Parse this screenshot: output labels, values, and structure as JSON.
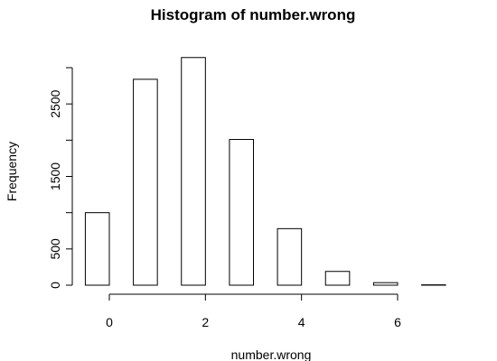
{
  "chart_data": {
    "type": "bar",
    "title": "Histogram of number.wrong",
    "xlabel": "number.wrong",
    "ylabel": "Frequency",
    "bins": [
      {
        "x0": -0.5,
        "x1": 0.0,
        "value": 1000
      },
      {
        "x0": 0.5,
        "x1": 1.0,
        "value": 2840
      },
      {
        "x0": 1.5,
        "x1": 2.0,
        "value": 3140
      },
      {
        "x0": 2.5,
        "x1": 3.0,
        "value": 2010
      },
      {
        "x0": 3.5,
        "x1": 4.0,
        "value": 780
      },
      {
        "x0": 4.5,
        "x1": 5.0,
        "value": 190
      },
      {
        "x0": 5.5,
        "x1": 6.0,
        "value": 35
      },
      {
        "x0": 6.5,
        "x1": 7.0,
        "value": 5
      }
    ],
    "xlim": [
      -0.5,
      7.0
    ],
    "ylim": [
      0,
      3000
    ],
    "xticks": [
      0,
      2,
      4,
      6
    ],
    "yticks": [
      0,
      500,
      1000,
      1500,
      2000,
      2500,
      3000
    ],
    "ytick_labels": [
      "0",
      "500",
      "",
      "1500",
      "",
      "2500",
      ""
    ],
    "grid": false,
    "bar_fill": "#ffffff",
    "bar_stroke": "#000000"
  }
}
